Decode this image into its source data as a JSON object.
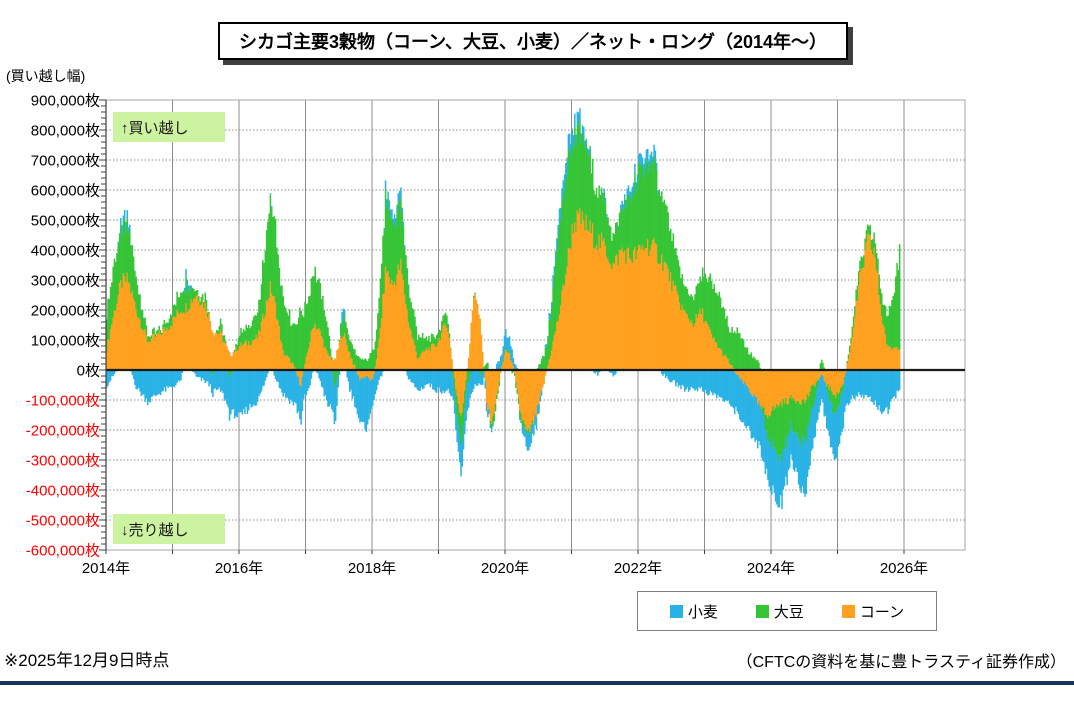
{
  "title": "シカゴ主要3穀物（コーン、大豆、小麦）／ネット・ロング（2014年～）",
  "y_axis": {
    "unit_label": "(買い越し幅)",
    "ticks": [
      "900,000枚",
      "800,000枚",
      "700,000枚",
      "600,000枚",
      "500,000枚",
      "400,000枚",
      "300,000枚",
      "200,000枚",
      "100,000枚",
      "0枚",
      "-100,000枚",
      "-200,000枚",
      "-300,000枚",
      "-400,000枚",
      "-500,000枚",
      "-600,000枚"
    ],
    "positive_color": "#000000",
    "negative_color": "#ff0000"
  },
  "x_axis": {
    "ticks": [
      "2014年",
      "2016年",
      "2018年",
      "2020年",
      "2022年",
      "2024年",
      "2026年"
    ]
  },
  "annotations": {
    "top": "↑買い越し",
    "bottom": "↓売り越し"
  },
  "legend": [
    {
      "label": "小麦",
      "color": "#29b2e6"
    },
    {
      "label": "大豆",
      "color": "#35c435"
    },
    {
      "label": "コーン",
      "color": "#ffa01e"
    }
  ],
  "footer": {
    "left": "※2025年12月9日時点",
    "right": "（CFTCの資料を基に豊トラスティ証券作成）"
  },
  "chart_data": {
    "type": "bar",
    "stacked": true,
    "title": "シカゴ主要3穀物（コーン、大豆、小麦）／ネット・ロング（2014年～）",
    "ylabel": "買い越し幅（枚）",
    "ylim": [
      -600000,
      900000
    ],
    "x_range_years": [
      2014,
      2026.9
    ],
    "grid": {
      "h_step": 100000,
      "v_step_years": 1
    },
    "legend_position": "bottom",
    "data_resolution": "weekly (keyframes below, values interpolated)",
    "values_unit": "千枚 (thousands of contracts)",
    "stack_order_from_zero": [
      "コーン",
      "大豆",
      "小麦"
    ],
    "keyframe_columns": [
      "year",
      "コーン",
      "大豆",
      "小麦"
    ],
    "keyframes": [
      [
        2014.0,
        70,
        120,
        -50
      ],
      [
        2014.1,
        180,
        160,
        -20
      ],
      [
        2014.22,
        290,
        175,
        25
      ],
      [
        2014.32,
        300,
        180,
        25
      ],
      [
        2014.45,
        200,
        100,
        -60
      ],
      [
        2014.62,
        95,
        20,
        -105
      ],
      [
        2014.8,
        120,
        10,
        -75
      ],
      [
        2014.95,
        150,
        30,
        -60
      ],
      [
        2015.1,
        200,
        60,
        -40
      ],
      [
        2015.2,
        210,
        80,
        30
      ],
      [
        2015.35,
        255,
        15,
        -25
      ],
      [
        2015.5,
        210,
        30,
        -40
      ],
      [
        2015.6,
        130,
        -20,
        -65
      ],
      [
        2015.72,
        120,
        40,
        -70
      ],
      [
        2015.85,
        50,
        -25,
        -130
      ],
      [
        2016.0,
        80,
        40,
        -160
      ],
      [
        2016.12,
        90,
        50,
        -130
      ],
      [
        2016.28,
        110,
        80,
        -100
      ],
      [
        2016.38,
        200,
        200,
        -40
      ],
      [
        2016.47,
        280,
        310,
        15
      ],
      [
        2016.55,
        200,
        250,
        -30
      ],
      [
        2016.65,
        60,
        180,
        -80
      ],
      [
        2016.8,
        20,
        130,
        -110
      ],
      [
        2016.92,
        -50,
        200,
        -120
      ],
      [
        2017.05,
        90,
        170,
        -60
      ],
      [
        2017.12,
        160,
        185,
        10
      ],
      [
        2017.22,
        120,
        140,
        -40
      ],
      [
        2017.32,
        50,
        100,
        -120
      ],
      [
        2017.43,
        30,
        -60,
        -130
      ],
      [
        2017.55,
        130,
        60,
        50
      ],
      [
        2017.65,
        60,
        50,
        -60
      ],
      [
        2017.8,
        -30,
        40,
        -150
      ],
      [
        2017.9,
        -20,
        30,
        -170
      ],
      [
        2018.0,
        -40,
        60,
        -90
      ],
      [
        2018.1,
        100,
        150,
        -40
      ],
      [
        2018.2,
        340,
        240,
        30
      ],
      [
        2018.3,
        280,
        185,
        25
      ],
      [
        2018.42,
        350,
        220,
        30
      ],
      [
        2018.55,
        150,
        110,
        -30
      ],
      [
        2018.68,
        40,
        70,
        -70
      ],
      [
        2018.82,
        70,
        40,
        -45
      ],
      [
        2018.95,
        80,
        30,
        -65
      ],
      [
        2019.12,
        160,
        40,
        -70
      ],
      [
        2019.25,
        -60,
        -50,
        -90
      ],
      [
        2019.33,
        -170,
        -90,
        -100
      ],
      [
        2019.45,
        60,
        -30,
        -80
      ],
      [
        2019.53,
        280,
        10,
        -55
      ],
      [
        2019.62,
        150,
        -20,
        -40
      ],
      [
        2019.72,
        -120,
        30,
        -25
      ],
      [
        2019.8,
        -180,
        -35,
        -15
      ],
      [
        2019.9,
        -40,
        -10,
        30
      ],
      [
        2020.0,
        70,
        15,
        55
      ],
      [
        2020.1,
        30,
        -10,
        35
      ],
      [
        2020.22,
        -140,
        -20,
        -10
      ],
      [
        2020.33,
        -220,
        -15,
        -50
      ],
      [
        2020.45,
        -160,
        0,
        -40
      ],
      [
        2020.58,
        -40,
        50,
        0
      ],
      [
        2020.7,
        80,
        160,
        30
      ],
      [
        2020.8,
        180,
        280,
        45
      ],
      [
        2020.9,
        320,
        330,
        55
      ],
      [
        2021.02,
        490,
        290,
        40
      ],
      [
        2021.12,
        500,
        270,
        35
      ],
      [
        2021.25,
        470,
        240,
        15
      ],
      [
        2021.38,
        430,
        170,
        -15
      ],
      [
        2021.5,
        410,
        155,
        15
      ],
      [
        2021.62,
        345,
        90,
        -20
      ],
      [
        2021.75,
        400,
        140,
        20
      ],
      [
        2021.88,
        375,
        200,
        25
      ],
      [
        2022.0,
        390,
        250,
        35
      ],
      [
        2022.12,
        420,
        280,
        40
      ],
      [
        2022.25,
        400,
        255,
        25
      ],
      [
        2022.4,
        350,
        195,
        -25
      ],
      [
        2022.55,
        260,
        130,
        -45
      ],
      [
        2022.7,
        185,
        85,
        -65
      ],
      [
        2022.82,
        155,
        95,
        -60
      ],
      [
        2022.95,
        195,
        125,
        -65
      ],
      [
        2023.1,
        110,
        180,
        -80
      ],
      [
        2023.22,
        70,
        170,
        -90
      ],
      [
        2023.35,
        30,
        115,
        -115
      ],
      [
        2023.5,
        -25,
        135,
        -130
      ],
      [
        2023.65,
        -60,
        60,
        -140
      ],
      [
        2023.8,
        -115,
        25,
        -150
      ],
      [
        2023.92,
        -150,
        -60,
        -140
      ],
      [
        2024.11,
        -115,
        -185,
        -160
      ],
      [
        2024.3,
        -95,
        -95,
        -100
      ],
      [
        2024.5,
        -105,
        -135,
        -190
      ],
      [
        2024.62,
        -55,
        -70,
        -120
      ],
      [
        2024.75,
        -20,
        30,
        -95
      ],
      [
        2024.88,
        -65,
        -45,
        -135
      ],
      [
        2024.98,
        -85,
        -60,
        -150
      ],
      [
        2025.08,
        -45,
        -15,
        -120
      ],
      [
        2025.18,
        70,
        25,
        -100
      ],
      [
        2025.32,
        290,
        45,
        -85
      ],
      [
        2025.45,
        430,
        35,
        -90
      ],
      [
        2025.55,
        390,
        45,
        -110
      ],
      [
        2025.65,
        190,
        65,
        -135
      ],
      [
        2025.75,
        70,
        105,
        -140
      ],
      [
        2025.85,
        75,
        210,
        -90
      ],
      [
        2025.93,
        80,
        330,
        -55
      ]
    ]
  }
}
